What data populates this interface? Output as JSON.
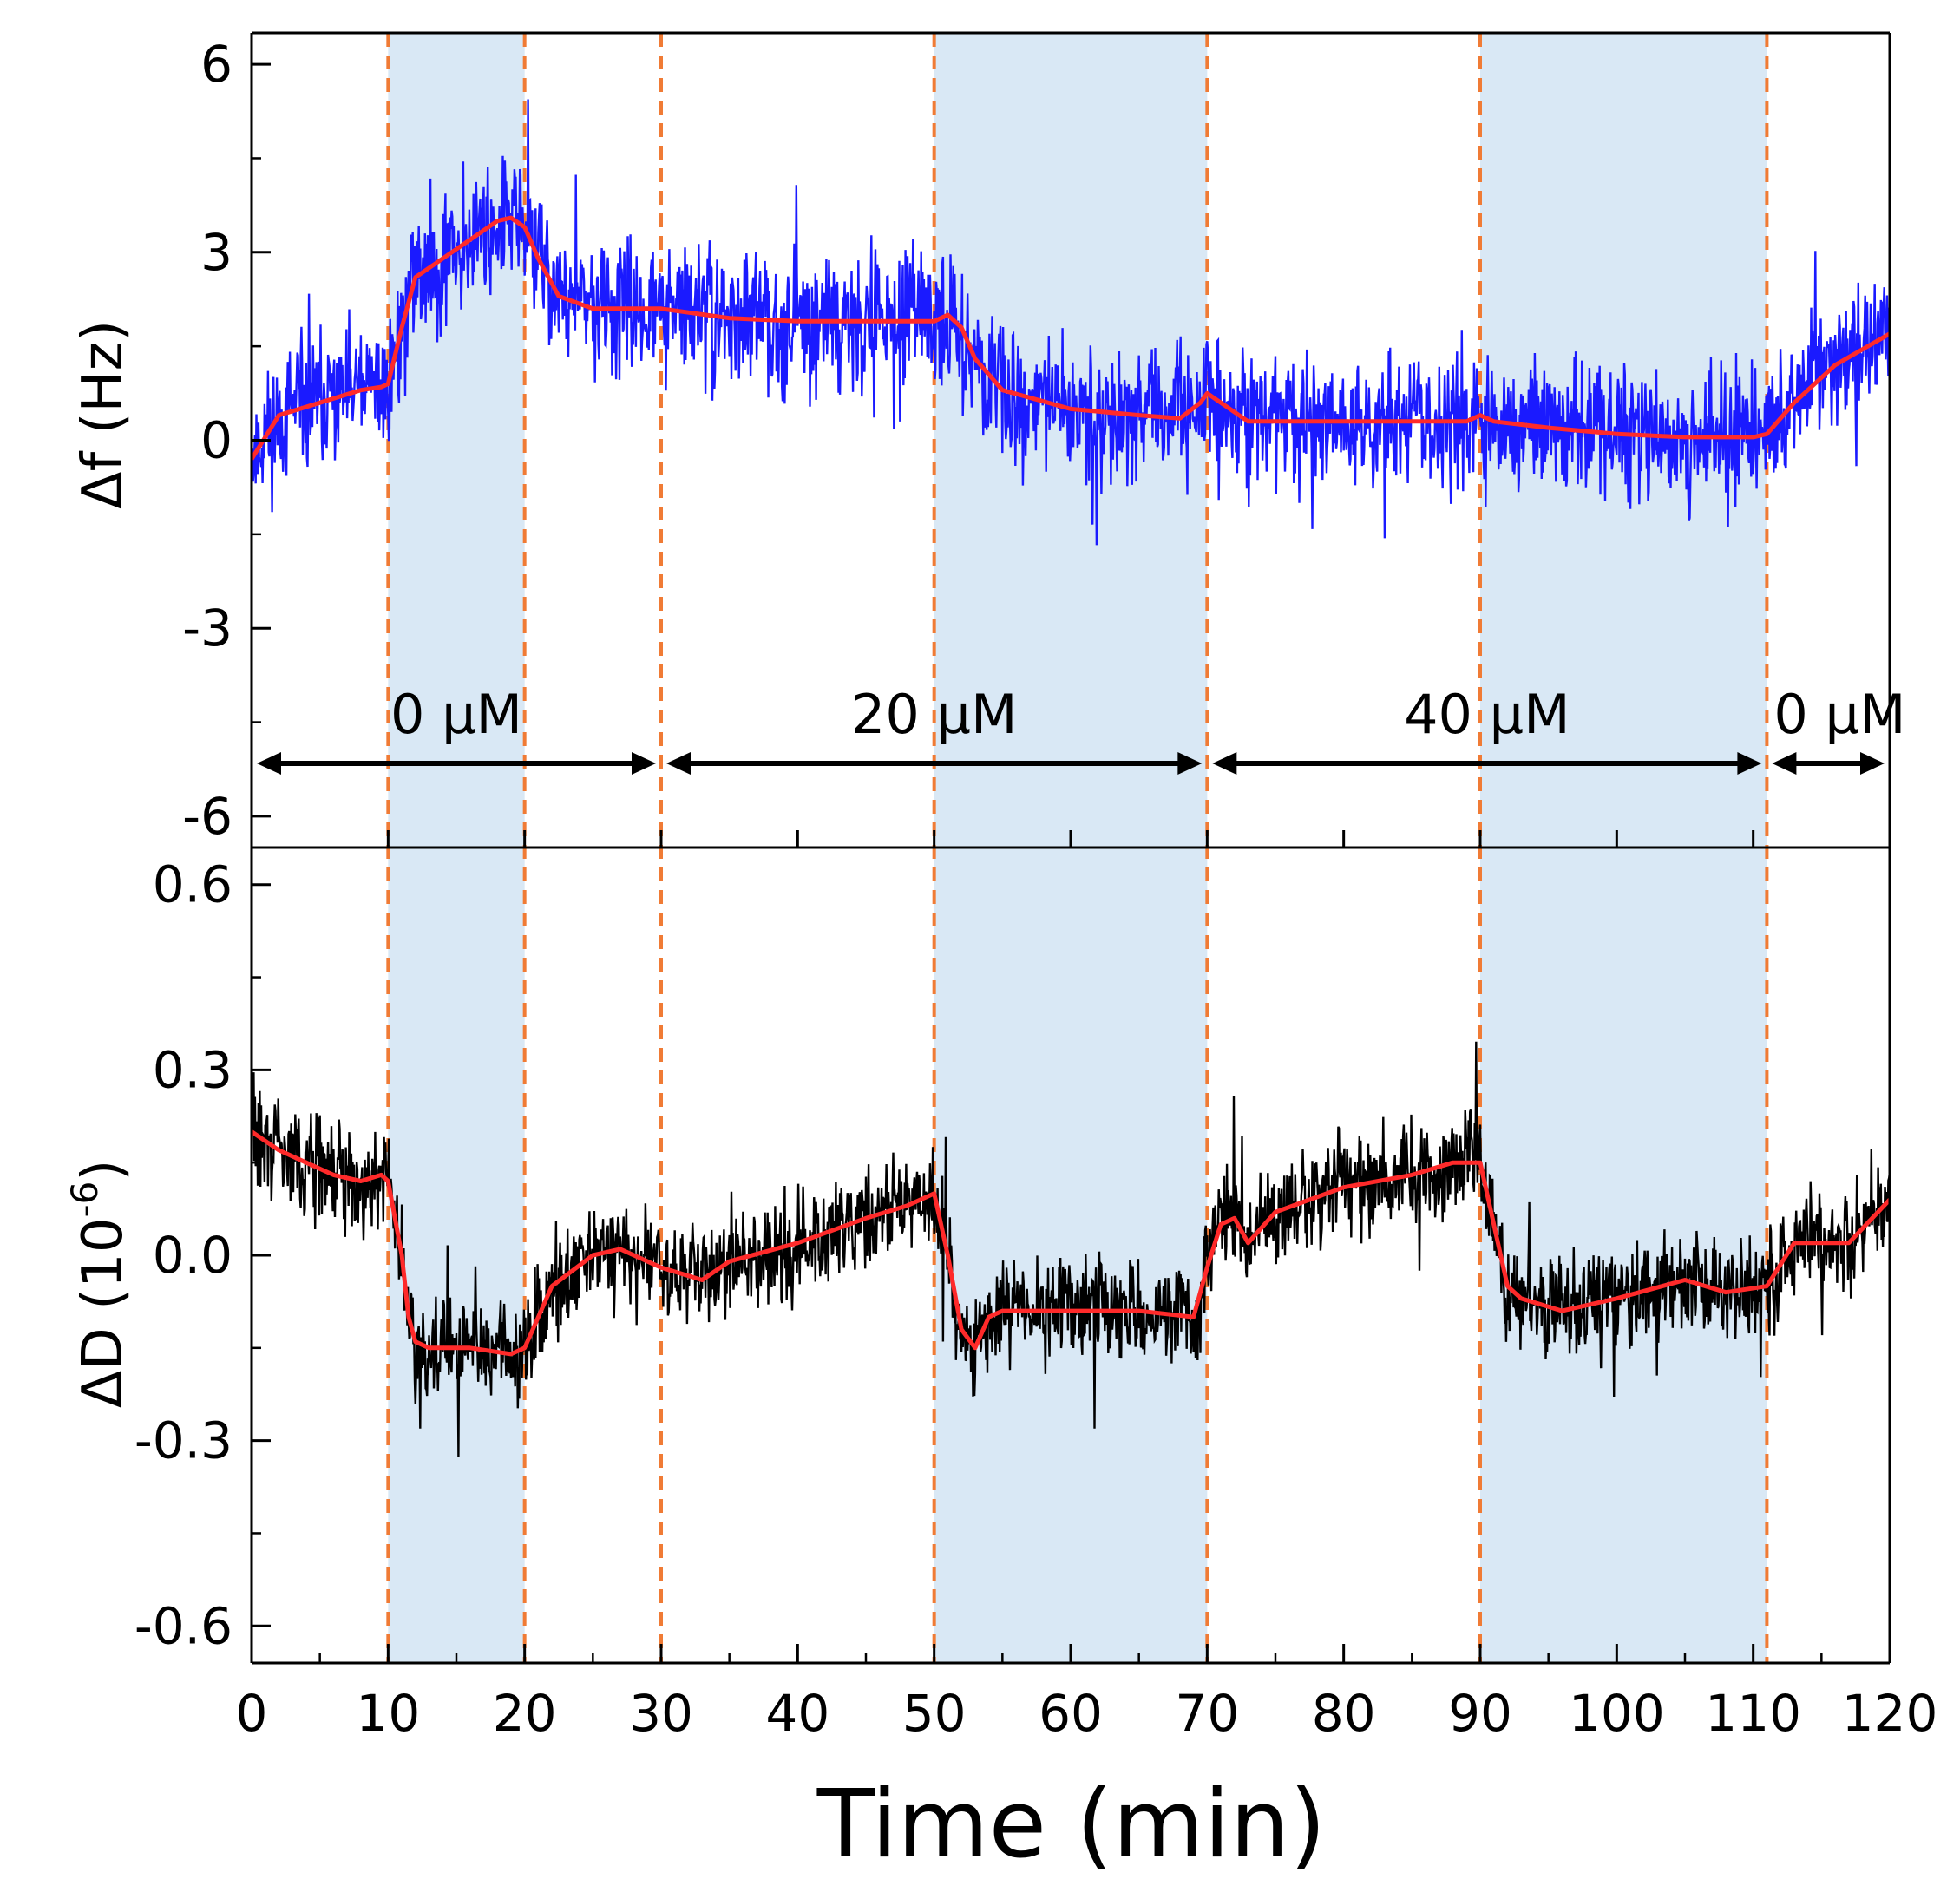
{
  "chart_data": {
    "type": "line",
    "x": {
      "label": "Time (min)",
      "range": [
        0,
        120
      ],
      "ticks": [
        0,
        10,
        20,
        30,
        40,
        50,
        60,
        70,
        80,
        90,
        100,
        110,
        120
      ],
      "tick_labels": [
        "0",
        "10",
        "20",
        "30",
        "40",
        "50",
        "60",
        "70",
        "80",
        "90",
        "100",
        "110",
        "120"
      ]
    },
    "shaded_intervals": [
      [
        10,
        20
      ],
      [
        50,
        70
      ],
      [
        90,
        111
      ]
    ],
    "event_lines": [
      10,
      20,
      30,
      50,
      70,
      90,
      111
    ],
    "phases": [
      {
        "label": "0 µM",
        "start": 0,
        "end": 30
      },
      {
        "label": "20 µM",
        "start": 30,
        "end": 70
      },
      {
        "label": "40 µM",
        "start": 70,
        "end": 111
      },
      {
        "label": "0 µM",
        "start": 111,
        "end": 120
      }
    ],
    "panels": [
      {
        "id": "frequency",
        "ylabel": "Δf (Hz)",
        "ylim": [
          -6.5,
          6.5
        ],
        "yticks": [
          -6,
          -3,
          0,
          3,
          6
        ],
        "ytick_labels": [
          "-6",
          "-3",
          "0",
          "3",
          "6"
        ],
        "series": [
          {
            "name": "Δf raw",
            "color": "#1a1aff",
            "noise": 1.5,
            "seed": 11,
            "points": [
              [
                0,
                -0.3
              ],
              [
                2,
                0.4
              ],
              [
                5,
                0.6
              ],
              [
                8,
                0.8
              ],
              [
                9.5,
                0.85
              ],
              [
                10,
                0.9
              ],
              [
                11,
                1.8
              ],
              [
                12,
                2.6
              ],
              [
                14,
                2.9
              ],
              [
                16,
                3.2
              ],
              [
                18,
                3.5
              ],
              [
                19,
                3.55
              ],
              [
                20,
                3.4
              ],
              [
                21,
                2.9
              ],
              [
                22.5,
                2.3
              ],
              [
                25,
                2.1
              ],
              [
                30,
                2.1
              ],
              [
                35,
                1.95
              ],
              [
                40,
                1.9
              ],
              [
                45,
                1.9
              ],
              [
                50,
                1.9
              ],
              [
                51,
                2.0
              ],
              [
                52,
                1.8
              ],
              [
                53,
                1.3
              ],
              [
                55,
                0.8
              ],
              [
                60,
                0.5
              ],
              [
                65,
                0.4
              ],
              [
                68,
                0.35
              ],
              [
                69.5,
                0.6
              ],
              [
                70,
                0.75
              ],
              [
                71,
                0.6
              ],
              [
                73,
                0.3
              ],
              [
                80,
                0.3
              ],
              [
                89,
                0.3
              ],
              [
                90,
                0.4
              ],
              [
                91,
                0.3
              ],
              [
                95,
                0.2
              ],
              [
                100,
                0.1
              ],
              [
                105,
                0.05
              ],
              [
                110,
                0.05
              ],
              [
                111,
                0.1
              ],
              [
                113,
                0.6
              ],
              [
                116,
                1.2
              ],
              [
                120,
                1.7
              ]
            ]
          },
          {
            "name": "Δf smoothed",
            "color": "#ff2a2a",
            "noise": 0,
            "seed": 0,
            "points": [
              [
                0,
                -0.3
              ],
              [
                2,
                0.4
              ],
              [
                5,
                0.6
              ],
              [
                8,
                0.8
              ],
              [
                9.5,
                0.85
              ],
              [
                10,
                0.9
              ],
              [
                11,
                1.8
              ],
              [
                12,
                2.6
              ],
              [
                14,
                2.9
              ],
              [
                16,
                3.2
              ],
              [
                18,
                3.5
              ],
              [
                19,
                3.55
              ],
              [
                20,
                3.4
              ],
              [
                21,
                2.9
              ],
              [
                22.5,
                2.3
              ],
              [
                25,
                2.1
              ],
              [
                30,
                2.1
              ],
              [
                35,
                1.95
              ],
              [
                40,
                1.9
              ],
              [
                45,
                1.9
              ],
              [
                50,
                1.9
              ],
              [
                51,
                2.0
              ],
              [
                52,
                1.8
              ],
              [
                53,
                1.3
              ],
              [
                55,
                0.8
              ],
              [
                60,
                0.5
              ],
              [
                65,
                0.4
              ],
              [
                68,
                0.35
              ],
              [
                69.5,
                0.6
              ],
              [
                70,
                0.75
              ],
              [
                71,
                0.6
              ],
              [
                73,
                0.3
              ],
              [
                80,
                0.3
              ],
              [
                89,
                0.3
              ],
              [
                90,
                0.4
              ],
              [
                91,
                0.3
              ],
              [
                95,
                0.2
              ],
              [
                100,
                0.1
              ],
              [
                105,
                0.05
              ],
              [
                110,
                0.05
              ],
              [
                111,
                0.1
              ],
              [
                113,
                0.6
              ],
              [
                116,
                1.2
              ],
              [
                120,
                1.7
              ]
            ]
          }
        ]
      },
      {
        "id": "dissipation",
        "ylabel": "ΔD (10",
        "ylabel_sup": "-6",
        "ylabel_end": ")",
        "ylim": [
          -0.66,
          0.66
        ],
        "yticks": [
          -0.6,
          -0.3,
          0.0,
          0.3,
          0.6
        ],
        "ytick_labels": [
          "-0.6",
          "-0.3",
          "0.0",
          "0.3",
          "0.6"
        ],
        "series": [
          {
            "name": "ΔD raw",
            "color": "#000000",
            "noise": 0.12,
            "seed": 29,
            "points": [
              [
                0,
                0.2
              ],
              [
                2,
                0.17
              ],
              [
                4,
                0.15
              ],
              [
                6,
                0.13
              ],
              [
                8,
                0.12
              ],
              [
                9.5,
                0.13
              ],
              [
                10,
                0.12
              ],
              [
                11,
                0.0
              ],
              [
                11.5,
                -0.1
              ],
              [
                12,
                -0.14
              ],
              [
                13,
                -0.15
              ],
              [
                16,
                -0.15
              ],
              [
                19,
                -0.16
              ],
              [
                20,
                -0.15
              ],
              [
                21,
                -0.1
              ],
              [
                22,
                -0.05
              ],
              [
                25,
                0.0
              ],
              [
                27,
                0.01
              ],
              [
                30,
                -0.02
              ],
              [
                33,
                -0.04
              ],
              [
                35,
                -0.01
              ],
              [
                40,
                0.02
              ],
              [
                45,
                0.06
              ],
              [
                48,
                0.08
              ],
              [
                50,
                0.1
              ],
              [
                51,
                0.0
              ],
              [
                52,
                -0.12
              ],
              [
                53,
                -0.15
              ],
              [
                54,
                -0.1
              ],
              [
                55,
                -0.09
              ],
              [
                60,
                -0.09
              ],
              [
                65,
                -0.09
              ],
              [
                69,
                -0.1
              ],
              [
                70,
                -0.02
              ],
              [
                71,
                0.05
              ],
              [
                72,
                0.06
              ],
              [
                73,
                0.02
              ],
              [
                75,
                0.07
              ],
              [
                80,
                0.11
              ],
              [
                85,
                0.13
              ],
              [
                88,
                0.15
              ],
              [
                90,
                0.15
              ],
              [
                91,
                0.05
              ],
              [
                92,
                -0.05
              ],
              [
                93,
                -0.07
              ],
              [
                96,
                -0.09
              ],
              [
                100,
                -0.07
              ],
              [
                105,
                -0.04
              ],
              [
                108,
                -0.06
              ],
              [
                111,
                -0.05
              ],
              [
                113,
                0.02
              ],
              [
                115,
                0.02
              ],
              [
                117,
                0.02
              ],
              [
                120,
                0.09
              ]
            ]
          },
          {
            "name": "ΔD smoothed",
            "color": "#ff2a2a",
            "noise": 0,
            "seed": 0,
            "points": [
              [
                0,
                0.2
              ],
              [
                2,
                0.17
              ],
              [
                4,
                0.15
              ],
              [
                6,
                0.13
              ],
              [
                8,
                0.12
              ],
              [
                9.5,
                0.13
              ],
              [
                10,
                0.12
              ],
              [
                11,
                0.0
              ],
              [
                11.5,
                -0.1
              ],
              [
                12,
                -0.14
              ],
              [
                13,
                -0.15
              ],
              [
                16,
                -0.15
              ],
              [
                19,
                -0.16
              ],
              [
                20,
                -0.15
              ],
              [
                21,
                -0.1
              ],
              [
                22,
                -0.05
              ],
              [
                25,
                0.0
              ],
              [
                27,
                0.01
              ],
              [
                30,
                -0.02
              ],
              [
                33,
                -0.04
              ],
              [
                35,
                -0.01
              ],
              [
                40,
                0.02
              ],
              [
                45,
                0.06
              ],
              [
                48,
                0.08
              ],
              [
                50,
                0.1
              ],
              [
                51,
                0.0
              ],
              [
                52,
                -0.12
              ],
              [
                53,
                -0.15
              ],
              [
                54,
                -0.1
              ],
              [
                55,
                -0.09
              ],
              [
                60,
                -0.09
              ],
              [
                65,
                -0.09
              ],
              [
                69,
                -0.1
              ],
              [
                70,
                -0.02
              ],
              [
                71,
                0.05
              ],
              [
                72,
                0.06
              ],
              [
                73,
                0.02
              ],
              [
                75,
                0.07
              ],
              [
                80,
                0.11
              ],
              [
                85,
                0.13
              ],
              [
                88,
                0.15
              ],
              [
                90,
                0.15
              ],
              [
                91,
                0.05
              ],
              [
                92,
                -0.05
              ],
              [
                93,
                -0.07
              ],
              [
                96,
                -0.09
              ],
              [
                100,
                -0.07
              ],
              [
                105,
                -0.04
              ],
              [
                108,
                -0.06
              ],
              [
                111,
                -0.05
              ],
              [
                113,
                0.02
              ],
              [
                115,
                0.02
              ],
              [
                117,
                0.02
              ],
              [
                120,
                0.09
              ]
            ]
          }
        ]
      }
    ],
    "colors": {
      "shade": "#d9e8f5",
      "event_line": "#f07b35",
      "axis": "#000000",
      "arrow": "#000000"
    }
  }
}
